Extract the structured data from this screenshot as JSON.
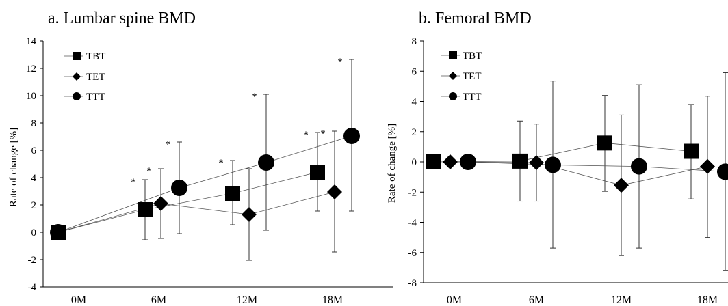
{
  "chart_data": [
    {
      "type": "scatter",
      "title": "a. Lumbar spine BMD",
      "xlabel": "",
      "ylabel": "Rate of change [%]",
      "categories": [
        "0M",
        "6M",
        "12M",
        "18M"
      ],
      "ylim": [
        -4,
        14
      ],
      "yticks": [
        "-4",
        "-2",
        "0",
        "2",
        "4",
        "6",
        "8",
        "10",
        "12",
        "14"
      ],
      "grid": false,
      "legend": "top-left",
      "series": [
        {
          "name": "TBT",
          "marker": "square",
          "values": [
            0,
            1.65,
            2.85,
            4.4
          ],
          "error_low": [
            0,
            -0.55,
            0.55,
            1.55
          ],
          "error_high": [
            0,
            3.85,
            5.25,
            7.3
          ],
          "significant": [
            false,
            true,
            true,
            true
          ]
        },
        {
          "name": "TET",
          "marker": "diamond",
          "values": [
            0,
            2.1,
            1.3,
            2.95
          ],
          "error_low": [
            0,
            -0.45,
            -2.05,
            -1.45
          ],
          "error_high": [
            0,
            4.65,
            4.65,
            7.4
          ],
          "significant": [
            false,
            true,
            false,
            true
          ]
        },
        {
          "name": "TTT",
          "marker": "circle",
          "values": [
            0,
            3.25,
            5.1,
            7.05
          ],
          "error_low": [
            0,
            -0.1,
            0.15,
            1.55
          ],
          "error_high": [
            0,
            6.6,
            10.1,
            12.65
          ],
          "significant": [
            false,
            true,
            true,
            true
          ]
        }
      ],
      "significance_mark": "*"
    },
    {
      "type": "scatter",
      "title": "b. Femoral BMD",
      "xlabel": "",
      "ylabel": "Rate of change [%]",
      "categories": [
        "0M",
        "6M",
        "12M",
        "18M"
      ],
      "ylim": [
        -8,
        8
      ],
      "yticks": [
        "-8",
        "-6",
        "-4",
        "-2",
        "0",
        "2",
        "4",
        "6",
        "8"
      ],
      "grid": false,
      "legend": "top-left",
      "series": [
        {
          "name": "TBT",
          "marker": "square",
          "values": [
            0,
            0.05,
            1.25,
            0.7
          ],
          "error_low": [
            0,
            -2.6,
            -1.95,
            -2.45
          ],
          "error_high": [
            0,
            2.7,
            4.4,
            3.8
          ],
          "significant": [
            false,
            false,
            false,
            false
          ]
        },
        {
          "name": "TET",
          "marker": "diamond",
          "values": [
            0,
            -0.05,
            -1.55,
            -0.3
          ],
          "error_low": [
            0,
            -2.6,
            -6.2,
            -5.0
          ],
          "error_high": [
            0,
            2.5,
            3.1,
            4.35
          ],
          "significant": [
            false,
            false,
            false,
            false
          ]
        },
        {
          "name": "TTT",
          "marker": "circle",
          "values": [
            0,
            -0.2,
            -0.3,
            -0.65
          ],
          "error_low": [
            0,
            -5.7,
            -5.7,
            -7.2
          ],
          "error_high": [
            0,
            5.35,
            5.1,
            5.9
          ],
          "significant": [
            false,
            false,
            false,
            false
          ]
        }
      ],
      "significance_mark": "*"
    }
  ]
}
